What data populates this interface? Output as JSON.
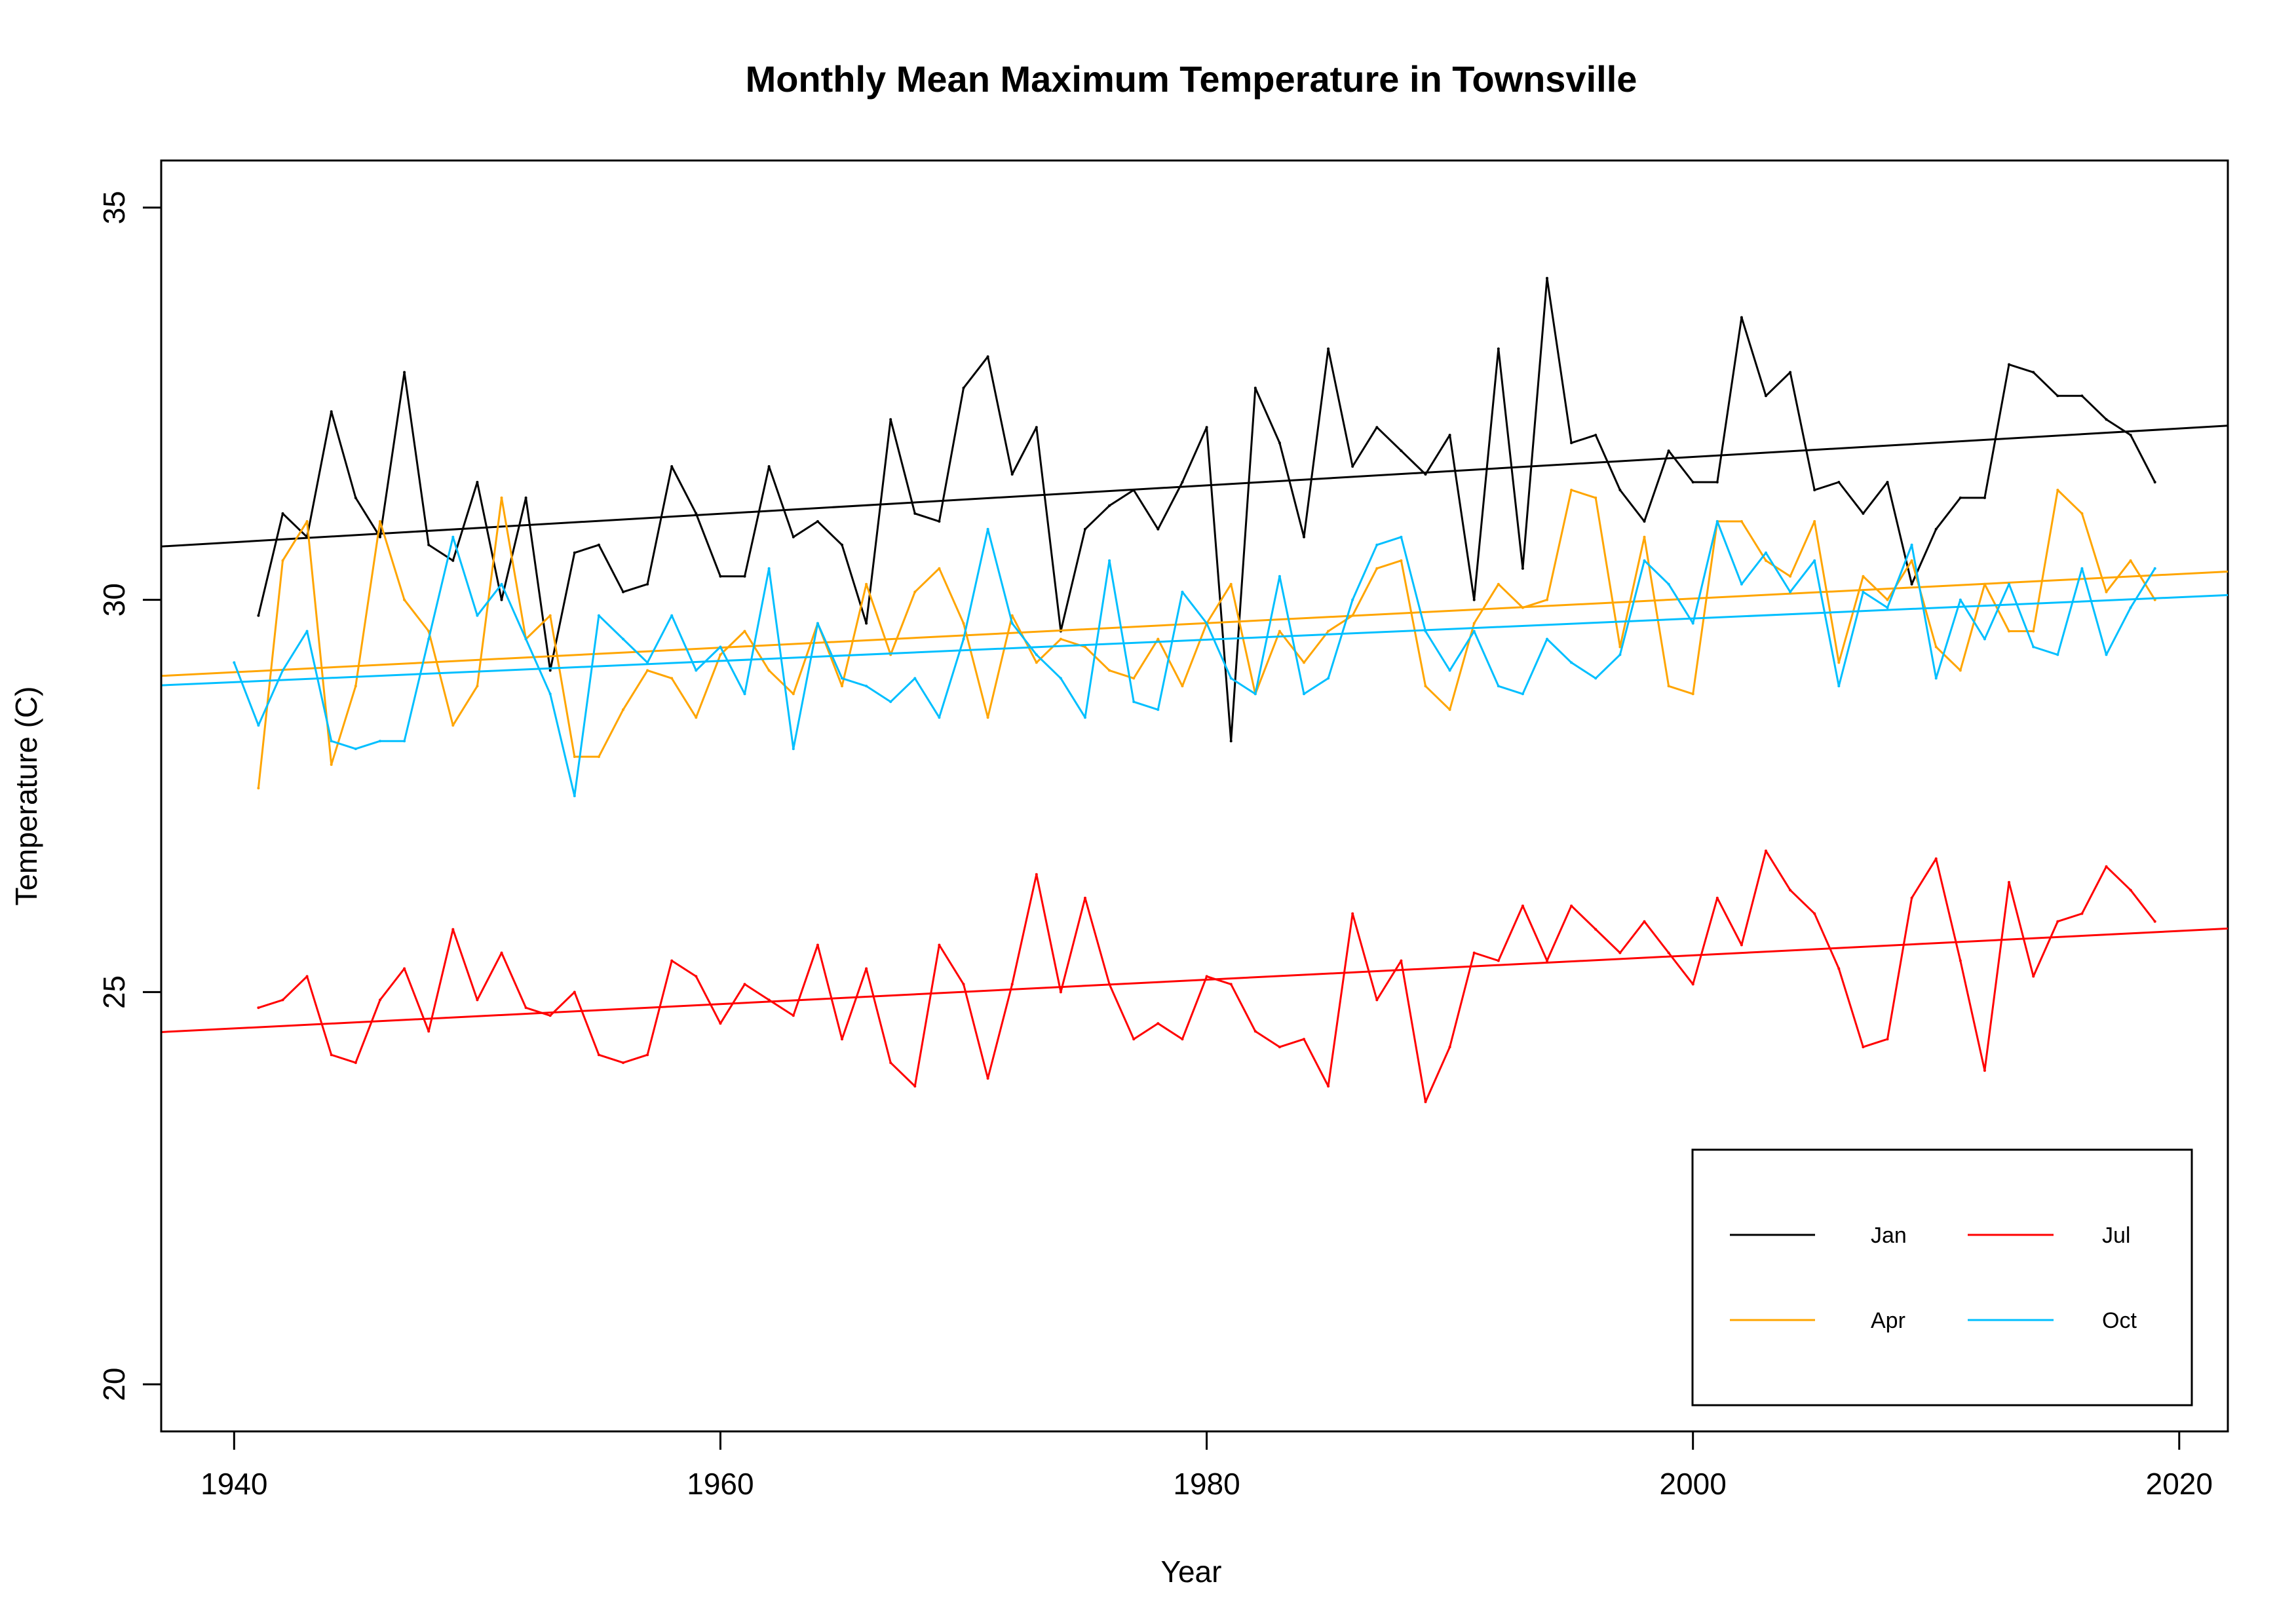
{
  "chart_data": {
    "type": "line",
    "title": "Monthly Mean Maximum Temperature in Townsville",
    "xlabel": "Year",
    "ylabel": "Temperature (C)",
    "xlim": [
      1937,
      2022
    ],
    "ylim": [
      19.4,
      35.6
    ],
    "xticks": [
      1940,
      1960,
      1980,
      2000,
      2020
    ],
    "yticks": [
      20,
      25,
      30,
      35
    ],
    "grid": false,
    "legend_position": "bottom-right",
    "legend": [
      {
        "label": "Jan",
        "color": "#000000"
      },
      {
        "label": "Jul",
        "color": "#ff0000"
      },
      {
        "label": "Apr",
        "color": "#ffa500"
      },
      {
        "label": "Oct",
        "color": "#00bfff"
      }
    ],
    "series": [
      {
        "name": "Jan",
        "color": "#000000",
        "x": [
          1941,
          1942,
          1943,
          1944,
          1945,
          1946,
          1947,
          1948,
          1949,
          1950,
          1951,
          1952,
          1953,
          1954,
          1955,
          1956,
          1957,
          1958,
          1959,
          1960,
          1961,
          1962,
          1963,
          1964,
          1965,
          1966,
          1967,
          1968,
          1969,
          1970,
          1971,
          1972,
          1973,
          1974,
          1975,
          1976,
          1977,
          1978,
          1979,
          1980,
          1981,
          1982,
          1983,
          1984,
          1985,
          1986,
          1987,
          1988,
          1989,
          1990,
          1991,
          1992,
          1993,
          1994,
          1995,
          1996,
          1997,
          1998,
          1999,
          2000,
          2001,
          2002,
          2003,
          2004,
          2005,
          2006,
          2007,
          2008,
          2009,
          2010,
          2011,
          2012,
          2013,
          2014,
          2015,
          2016,
          2017,
          2018,
          2019
        ],
        "values": [
          29.8,
          31.1,
          30.8,
          32.4,
          31.3,
          30.8,
          32.9,
          30.7,
          30.5,
          31.5,
          30.0,
          31.3,
          29.1,
          30.6,
          30.7,
          30.1,
          30.2,
          31.7,
          31.1,
          30.3,
          30.3,
          31.7,
          30.8,
          31.0,
          30.7,
          29.7,
          32.3,
          31.1,
          31.0,
          32.7,
          33.1,
          31.6,
          32.2,
          29.6,
          30.9,
          31.2,
          31.4,
          30.9,
          31.5,
          32.2,
          28.2,
          32.7,
          32.0,
          30.8,
          33.2,
          31.7,
          32.2,
          31.9,
          31.6,
          32.1,
          30.0,
          33.2,
          30.4,
          34.1,
          32.0,
          32.1,
          31.4,
          31.0,
          31.9,
          31.5,
          31.5,
          33.6,
          32.6,
          32.9,
          31.4,
          31.5,
          31.1,
          31.5,
          30.2,
          30.9,
          31.3,
          31.3,
          33.0,
          32.9,
          32.6,
          32.6,
          32.3,
          32.1,
          31.5
        ],
        "trend": [
          [
            1937,
            30.68
          ],
          [
            2022,
            32.22
          ]
        ]
      },
      {
        "name": "Apr",
        "color": "#ffa500",
        "x": [
          1941,
          1942,
          1943,
          1944,
          1945,
          1946,
          1947,
          1948,
          1949,
          1950,
          1951,
          1952,
          1953,
          1954,
          1955,
          1956,
          1957,
          1958,
          1959,
          1960,
          1961,
          1962,
          1963,
          1964,
          1965,
          1966,
          1967,
          1968,
          1969,
          1970,
          1971,
          1972,
          1973,
          1974,
          1975,
          1976,
          1977,
          1978,
          1979,
          1980,
          1981,
          1982,
          1983,
          1984,
          1985,
          1986,
          1987,
          1988,
          1989,
          1990,
          1991,
          1992,
          1993,
          1994,
          1995,
          1996,
          1997,
          1998,
          1999,
          2000,
          2001,
          2002,
          2003,
          2004,
          2005,
          2006,
          2007,
          2008,
          2009,
          2010,
          2011,
          2012,
          2013,
          2014,
          2015,
          2016,
          2017,
          2018,
          2019
        ],
        "values": [
          27.6,
          30.5,
          31.0,
          27.9,
          28.9,
          31.0,
          30.0,
          29.6,
          28.4,
          28.9,
          31.3,
          29.5,
          29.8,
          28.0,
          28.0,
          28.6,
          29.1,
          29.0,
          28.5,
          29.3,
          29.6,
          29.1,
          28.8,
          29.7,
          28.9,
          30.2,
          29.3,
          30.1,
          30.4,
          29.7,
          28.5,
          29.8,
          29.2,
          29.5,
          29.4,
          29.1,
          29.0,
          29.5,
          28.9,
          29.7,
          30.2,
          28.8,
          29.6,
          29.2,
          29.6,
          29.8,
          30.4,
          30.5,
          28.9,
          28.6,
          29.7,
          30.2,
          29.9,
          30.0,
          31.4,
          31.3,
          29.4,
          30.8,
          28.9,
          28.8,
          31.0,
          31.0,
          30.5,
          30.3,
          31.0,
          29.2,
          30.3,
          30.0,
          30.5,
          29.4,
          29.1,
          30.2,
          29.6,
          29.6,
          31.4,
          31.1,
          30.1,
          30.5,
          30.0
        ],
        "trend": [
          [
            1937,
            29.03
          ],
          [
            2022,
            30.36
          ]
        ]
      },
      {
        "name": "Jul",
        "color": "#ff0000",
        "x": [
          1941,
          1942,
          1943,
          1944,
          1945,
          1946,
          1947,
          1948,
          1949,
          1950,
          1951,
          1952,
          1953,
          1954,
          1955,
          1956,
          1957,
          1958,
          1959,
          1960,
          1961,
          1962,
          1963,
          1964,
          1965,
          1966,
          1967,
          1968,
          1969,
          1970,
          1971,
          1972,
          1973,
          1974,
          1975,
          1976,
          1977,
          1978,
          1979,
          1980,
          1981,
          1982,
          1983,
          1984,
          1985,
          1986,
          1987,
          1988,
          1989,
          1990,
          1991,
          1992,
          1993,
          1994,
          1995,
          1996,
          1997,
          1998,
          1999,
          2000,
          2001,
          2002,
          2003,
          2004,
          2005,
          2006,
          2007,
          2008,
          2009,
          2010,
          2011,
          2012,
          2013,
          2014,
          2015,
          2016,
          2017,
          2018,
          2019
        ],
        "values": [
          24.8,
          24.9,
          25.2,
          24.2,
          24.1,
          24.9,
          25.3,
          24.5,
          25.8,
          24.9,
          25.5,
          24.8,
          24.7,
          25.0,
          24.2,
          24.1,
          24.2,
          25.4,
          25.2,
          24.6,
          25.1,
          24.9,
          24.7,
          25.6,
          24.4,
          25.3,
          24.1,
          23.8,
          25.6,
          25.1,
          23.9,
          25.1,
          26.5,
          25.0,
          26.2,
          25.1,
          24.4,
          24.6,
          24.4,
          25.2,
          25.1,
          24.5,
          24.3,
          24.4,
          23.8,
          26.0,
          24.9,
          25.4,
          23.6,
          24.3,
          25.5,
          25.4,
          26.1,
          25.4,
          26.1,
          25.8,
          25.5,
          25.9,
          25.5,
          25.1,
          26.2,
          25.6,
          26.8,
          26.3,
          26.0,
          25.3,
          24.3,
          24.4,
          26.2,
          26.7,
          25.4,
          24.0,
          26.4,
          25.2,
          25.9,
          26.0,
          26.6,
          26.3,
          25.9
        ],
        "trend": [
          [
            1937,
            24.49
          ],
          [
            2022,
            25.81
          ]
        ]
      },
      {
        "name": "Oct",
        "color": "#00bfff",
        "x": [
          1940,
          1941,
          1942,
          1943,
          1944,
          1945,
          1946,
          1947,
          1948,
          1949,
          1950,
          1951,
          1952,
          1953,
          1954,
          1955,
          1956,
          1957,
          1958,
          1959,
          1960,
          1961,
          1962,
          1963,
          1964,
          1965,
          1966,
          1967,
          1968,
          1969,
          1970,
          1971,
          1972,
          1973,
          1974,
          1975,
          1976,
          1977,
          1978,
          1979,
          1980,
          1981,
          1982,
          1983,
          1984,
          1985,
          1986,
          1987,
          1988,
          1989,
          1990,
          1991,
          1992,
          1993,
          1994,
          1995,
          1996,
          1997,
          1998,
          1999,
          2000,
          2001,
          2002,
          2003,
          2004,
          2005,
          2006,
          2007,
          2008,
          2009,
          2010,
          2011,
          2012,
          2013,
          2014,
          2015,
          2016,
          2017,
          2018,
          2019
        ],
        "values": [
          29.2,
          28.4,
          29.1,
          29.6,
          28.2,
          28.1,
          28.2,
          28.2,
          29.5,
          30.8,
          29.8,
          30.2,
          29.5,
          28.8,
          27.5,
          29.8,
          29.5,
          29.2,
          29.8,
          29.1,
          29.4,
          28.8,
          30.4,
          28.1,
          29.7,
          29.0,
          28.9,
          28.7,
          29.0,
          28.5,
          29.5,
          30.9,
          29.7,
          29.3,
          29.0,
          28.5,
          30.5,
          28.7,
          28.6,
          30.1,
          29.7,
          29.0,
          28.8,
          30.3,
          28.8,
          29.0,
          30.0,
          30.7,
          30.8,
          29.6,
          29.1,
          29.6,
          28.9,
          28.8,
          29.5,
          29.2,
          29.0,
          29.3,
          30.5,
          30.2,
          29.7,
          31.0,
          30.2,
          30.6,
          30.1,
          30.5,
          28.9,
          30.1,
          29.9,
          30.7,
          29.0,
          30.0,
          29.5,
          30.2,
          29.4,
          29.3,
          30.4,
          29.3,
          29.9,
          30.4
        ],
        "trend": [
          [
            1937,
            28.91
          ],
          [
            2022,
            30.06
          ]
        ]
      }
    ]
  }
}
